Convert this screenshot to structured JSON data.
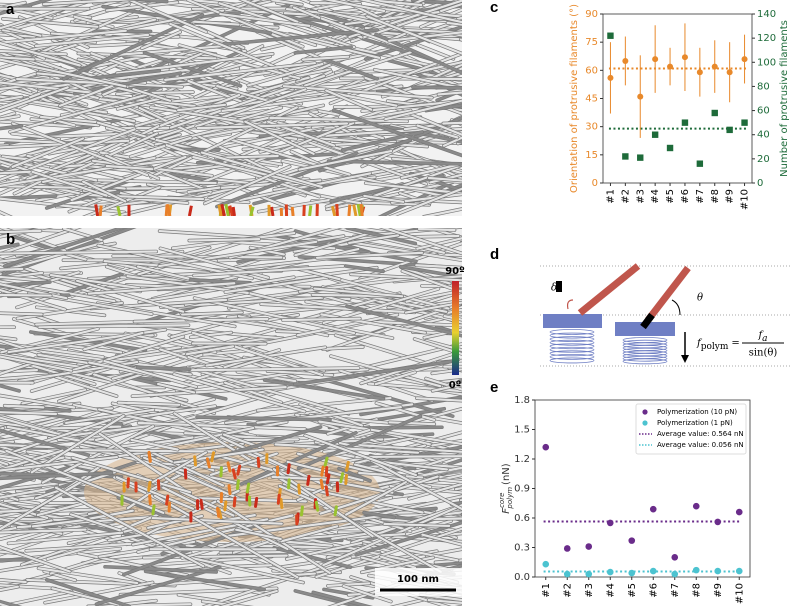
{
  "panels": {
    "a": "a",
    "b": "b",
    "c": "c",
    "d": "d",
    "e": "e"
  },
  "colorbar": {
    "top": "90º",
    "bottom": "0º"
  },
  "scale_bar": "100 nm",
  "diagram": {
    "delta": "δ",
    "theta": "θ",
    "lhs": "f",
    "lhs_sub": "polym",
    "equals": "=",
    "num": "f",
    "num_sub": "a",
    "den": "sin(θ)"
  },
  "chart_data": [
    {
      "type": "scatter",
      "ylabel": "Orientation of protrusive filaments (°)",
      "y2label": "Number of protrusive filaments",
      "ylabel_color": "#e8892b",
      "y2label_color": "#1e6b3a",
      "categories": [
        "#1",
        "#2",
        "#3",
        "#4",
        "#5",
        "#6",
        "#7",
        "#8",
        "#9",
        "#10"
      ],
      "ylim": [
        0,
        90
      ],
      "yticks": [
        0,
        15,
        30,
        45,
        60,
        75,
        90
      ],
      "y2lim": [
        0,
        140
      ],
      "y2ticks": [
        0,
        20,
        40,
        60,
        80,
        100,
        120,
        140
      ],
      "series": [
        {
          "color": "#e8892b",
          "marker": "circle",
          "values": [
            56,
            65,
            46,
            66,
            62,
            67,
            59,
            62,
            59,
            66
          ],
          "errors": [
            19,
            13,
            22,
            18,
            10,
            18,
            13,
            14,
            16,
            13
          ]
        },
        {
          "color": "#1e6b3a",
          "marker": "square",
          "axis": "y2",
          "values": [
            122,
            22,
            21,
            40,
            29,
            50,
            16,
            58,
            44,
            50
          ]
        }
      ],
      "reference_lines": [
        {
          "color": "#e8892b",
          "value": 61
        },
        {
          "color": "#1e6b3a",
          "value": 45,
          "axis": "y2"
        }
      ]
    },
    {
      "type": "scatter",
      "ylabel": "F",
      "ylabel_sup": "core",
      "ylabel_sub": "polym",
      "ylabel_unit": "(nN)",
      "categories": [
        "#1",
        "#2",
        "#3",
        "#4",
        "#5",
        "#6",
        "#7",
        "#8",
        "#9",
        "#10"
      ],
      "ylim": [
        0,
        1.8
      ],
      "yticks": [
        {
          "value": 0,
          "label": "0.0"
        },
        0.3,
        0.6,
        0.9,
        1.2,
        1.5,
        1.8
      ],
      "legend": "upper right",
      "series": [
        {
          "name": "Polymerization (10 pN)",
          "color": "#6a2c8a",
          "marker": "circle",
          "values": [
            1.32,
            0.29,
            0.31,
            0.55,
            0.37,
            0.69,
            0.2,
            0.72,
            0.56,
            0.66
          ]
        },
        {
          "name": "Polymerization (1 pN)",
          "color": "#4cc3d0",
          "marker": "circle",
          "values": [
            0.13,
            0.03,
            0.03,
            0.05,
            0.04,
            0.06,
            0.03,
            0.07,
            0.06,
            0.06
          ]
        }
      ],
      "reference_lines": [
        {
          "name": "Average value: 0.564 nN",
          "color": "#6a2c8a",
          "value": 0.564
        },
        {
          "name": "Average value: 0.056 nN",
          "color": "#4cc3d0",
          "value": 0.056
        }
      ]
    }
  ]
}
